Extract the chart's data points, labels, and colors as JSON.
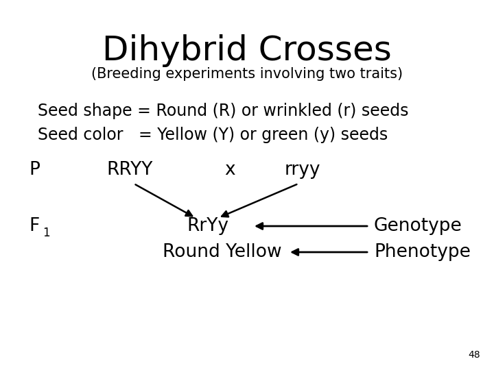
{
  "title": "Dihybrid Crosses",
  "subtitle": "(Breeding experiments involving two traits)",
  "line1": "Seed shape = Round (R) or wrinkled (r) seeds",
  "line2": "Seed color   = Yellow (Y) or green (y) seeds",
  "P_label": "P",
  "RRYY_label": "RRYY",
  "x_label": "x",
  "rryy_label": "rryy",
  "F1_label": "F",
  "F1_sub": "1",
  "RrYy_label": "RrYy",
  "RoundYellow_label": "Round Yellow",
  "Genotype_label": "Genotype",
  "Phenotype_label": "Phenotype",
  "page_number": "48",
  "bg_color": "#ffffff",
  "text_color": "#000000",
  "title_fontsize": 36,
  "subtitle_fontsize": 15,
  "body_fontsize": 17,
  "label_fontsize": 19,
  "small_fontsize": 10
}
